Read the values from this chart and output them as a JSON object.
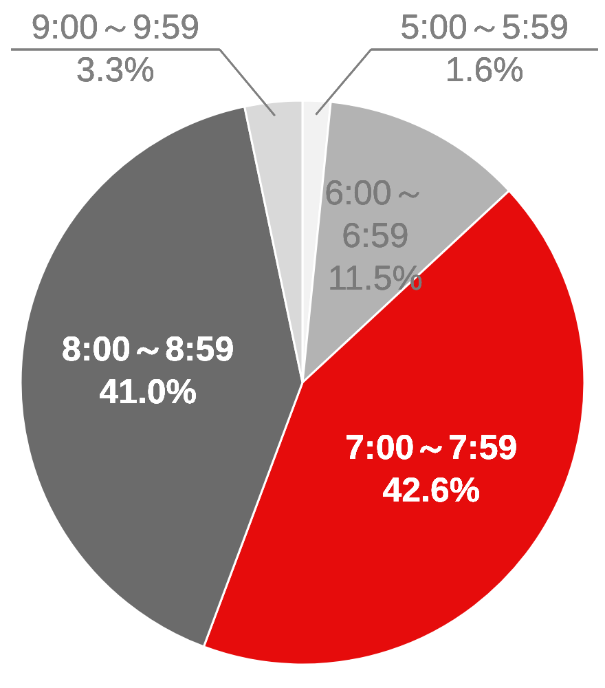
{
  "chart_data": {
    "type": "pie",
    "categories": [
      "5:00～5:59",
      "6:00～6:59",
      "7:00～7:59",
      "8:00～8:59",
      "9:00～9:59"
    ],
    "values": [
      1.6,
      11.5,
      42.6,
      41.0,
      3.3
    ],
    "value_labels": [
      "1.6%",
      "11.5%",
      "42.6%",
      "41.0%",
      "3.3%"
    ],
    "colors": [
      "#f2f2f2",
      "#b3b3b3",
      "#e60c0c",
      "#6b6b6b",
      "#d9d9d9"
    ]
  }
}
